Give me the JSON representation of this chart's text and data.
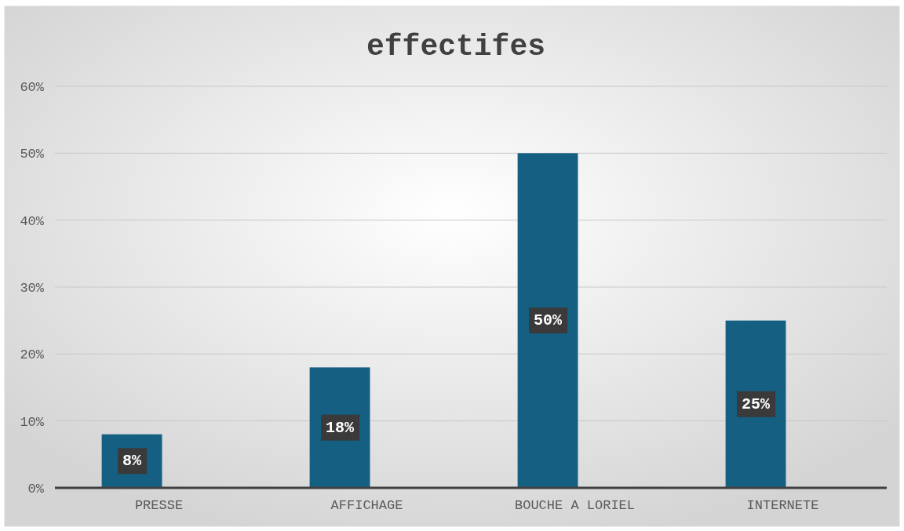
{
  "chart_data": {
    "type": "bar",
    "title": "effectifes",
    "categories": [
      "PRESSE",
      "AFFICHAGE",
      "BOUCHE A LORIEL",
      "INTERNETE"
    ],
    "values": [
      8,
      18,
      50,
      25
    ],
    "color": "#155f82",
    "value_labels": [
      "8%",
      "18%",
      "50%",
      "25%"
    ],
    "ylim": [
      0,
      60
    ],
    "yticks": [
      {
        "value": 0,
        "label": "0%"
      },
      {
        "value": 10,
        "label": "10%"
      },
      {
        "value": 20,
        "label": "20%"
      },
      {
        "value": 30,
        "label": "30%"
      },
      {
        "value": 40,
        "label": "40%"
      },
      {
        "value": 50,
        "label": "50%"
      },
      {
        "value": 60,
        "label": "60%"
      }
    ],
    "grid": "y"
  }
}
